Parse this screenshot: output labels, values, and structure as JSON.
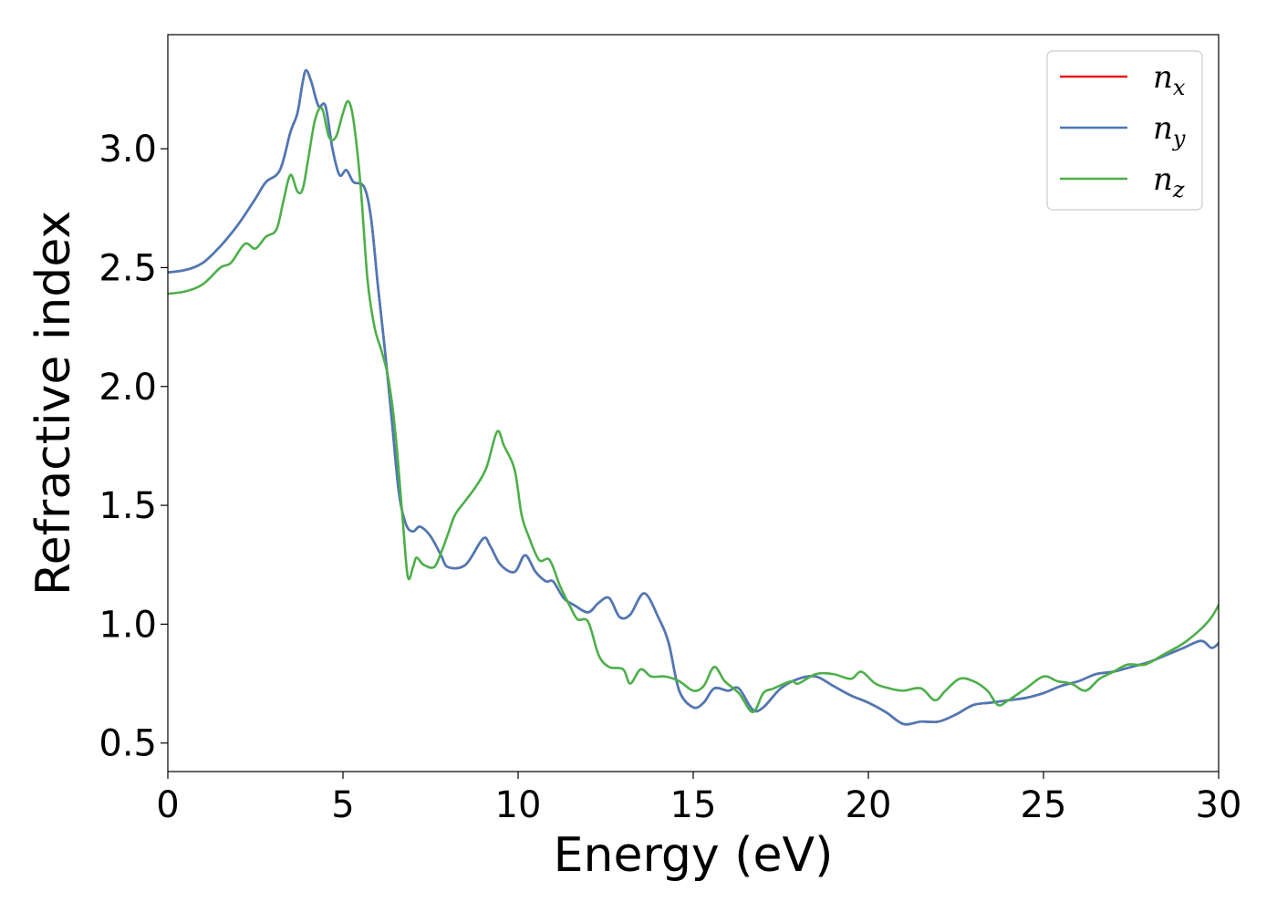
{
  "chart_data": {
    "type": "line",
    "xlabel": "Energy (eV)",
    "ylabel": "Refractive index",
    "xlim": [
      0,
      30
    ],
    "ylim": [
      0.38,
      3.48
    ],
    "xticks": [
      0,
      5,
      10,
      15,
      20,
      25,
      30
    ],
    "xtick_labels": [
      "0",
      "5",
      "10",
      "15",
      "20",
      "25",
      "30"
    ],
    "yticks": [
      0.5,
      1.0,
      1.5,
      2.0,
      2.5,
      3.0
    ],
    "ytick_labels": [
      "0.5",
      "1.0",
      "1.5",
      "2.0",
      "2.5",
      "3.0"
    ],
    "grid": false,
    "legend_position": "top-right",
    "series": [
      {
        "name": "n_x",
        "label_base": "n",
        "label_sub": "x",
        "color": "#e41a1c",
        "points": [
          [
            0,
            2.48
          ],
          [
            0.5,
            2.49
          ],
          [
            1.0,
            2.52
          ],
          [
            1.5,
            2.59
          ],
          [
            2.0,
            2.68
          ],
          [
            2.5,
            2.79
          ],
          [
            2.8,
            2.86
          ],
          [
            3.2,
            2.91
          ],
          [
            3.5,
            3.07
          ],
          [
            3.7,
            3.15
          ],
          [
            3.85,
            3.28
          ],
          [
            3.95,
            3.33
          ],
          [
            4.1,
            3.28
          ],
          [
            4.3,
            3.18
          ],
          [
            4.5,
            3.18
          ],
          [
            4.7,
            3.0
          ],
          [
            4.9,
            2.89
          ],
          [
            5.1,
            2.91
          ],
          [
            5.3,
            2.86
          ],
          [
            5.6,
            2.84
          ],
          [
            5.8,
            2.71
          ],
          [
            6.0,
            2.42
          ],
          [
            6.2,
            2.15
          ],
          [
            6.4,
            1.85
          ],
          [
            6.6,
            1.55
          ],
          [
            6.8,
            1.42
          ],
          [
            7.0,
            1.39
          ],
          [
            7.2,
            1.41
          ],
          [
            7.5,
            1.37
          ],
          [
            7.8,
            1.29
          ],
          [
            8.0,
            1.24
          ],
          [
            8.5,
            1.25
          ],
          [
            9.0,
            1.36
          ],
          [
            9.2,
            1.33
          ],
          [
            9.5,
            1.25
          ],
          [
            9.9,
            1.22
          ],
          [
            10.2,
            1.29
          ],
          [
            10.5,
            1.22
          ],
          [
            10.8,
            1.18
          ],
          [
            11.0,
            1.18
          ],
          [
            11.3,
            1.11
          ],
          [
            11.6,
            1.08
          ],
          [
            12.0,
            1.05
          ],
          [
            12.3,
            1.09
          ],
          [
            12.6,
            1.11
          ],
          [
            12.9,
            1.03
          ],
          [
            13.2,
            1.04
          ],
          [
            13.6,
            1.13
          ],
          [
            14.0,
            1.03
          ],
          [
            14.3,
            0.92
          ],
          [
            14.6,
            0.72
          ],
          [
            15.0,
            0.65
          ],
          [
            15.3,
            0.67
          ],
          [
            15.6,
            0.73
          ],
          [
            16.0,
            0.72
          ],
          [
            16.3,
            0.73
          ],
          [
            16.7,
            0.64
          ],
          [
            17.0,
            0.65
          ],
          [
            17.5,
            0.73
          ],
          [
            18.0,
            0.77
          ],
          [
            18.5,
            0.78
          ],
          [
            19.0,
            0.74
          ],
          [
            19.5,
            0.7
          ],
          [
            20.0,
            0.67
          ],
          [
            20.5,
            0.63
          ],
          [
            21.0,
            0.58
          ],
          [
            21.5,
            0.59
          ],
          [
            22.0,
            0.59
          ],
          [
            22.5,
            0.62
          ],
          [
            23.0,
            0.66
          ],
          [
            23.5,
            0.67
          ],
          [
            24.0,
            0.68
          ],
          [
            24.5,
            0.69
          ],
          [
            25.0,
            0.71
          ],
          [
            25.5,
            0.74
          ],
          [
            26.0,
            0.76
          ],
          [
            26.5,
            0.79
          ],
          [
            27.0,
            0.8
          ],
          [
            27.5,
            0.82
          ],
          [
            28.0,
            0.84
          ],
          [
            28.5,
            0.87
          ],
          [
            29.0,
            0.9
          ],
          [
            29.5,
            0.93
          ],
          [
            29.8,
            0.9
          ],
          [
            30.0,
            0.92
          ]
        ]
      },
      {
        "name": "n_y",
        "label_base": "n",
        "label_sub": "y",
        "color": "#4a7ab8",
        "points": [
          [
            0,
            2.48
          ],
          [
            0.5,
            2.49
          ],
          [
            1.0,
            2.52
          ],
          [
            1.5,
            2.59
          ],
          [
            2.0,
            2.68
          ],
          [
            2.5,
            2.79
          ],
          [
            2.8,
            2.86
          ],
          [
            3.2,
            2.91
          ],
          [
            3.5,
            3.07
          ],
          [
            3.7,
            3.15
          ],
          [
            3.85,
            3.28
          ],
          [
            3.95,
            3.33
          ],
          [
            4.1,
            3.28
          ],
          [
            4.3,
            3.18
          ],
          [
            4.5,
            3.18
          ],
          [
            4.7,
            3.0
          ],
          [
            4.9,
            2.89
          ],
          [
            5.1,
            2.91
          ],
          [
            5.3,
            2.86
          ],
          [
            5.6,
            2.84
          ],
          [
            5.8,
            2.71
          ],
          [
            6.0,
            2.42
          ],
          [
            6.2,
            2.15
          ],
          [
            6.4,
            1.85
          ],
          [
            6.6,
            1.55
          ],
          [
            6.8,
            1.42
          ],
          [
            7.0,
            1.39
          ],
          [
            7.2,
            1.41
          ],
          [
            7.5,
            1.37
          ],
          [
            7.8,
            1.29
          ],
          [
            8.0,
            1.24
          ],
          [
            8.5,
            1.25
          ],
          [
            9.0,
            1.36
          ],
          [
            9.2,
            1.33
          ],
          [
            9.5,
            1.25
          ],
          [
            9.9,
            1.22
          ],
          [
            10.2,
            1.29
          ],
          [
            10.5,
            1.22
          ],
          [
            10.8,
            1.18
          ],
          [
            11.0,
            1.18
          ],
          [
            11.3,
            1.11
          ],
          [
            11.6,
            1.08
          ],
          [
            12.0,
            1.05
          ],
          [
            12.3,
            1.09
          ],
          [
            12.6,
            1.11
          ],
          [
            12.9,
            1.03
          ],
          [
            13.2,
            1.04
          ],
          [
            13.6,
            1.13
          ],
          [
            14.0,
            1.03
          ],
          [
            14.3,
            0.92
          ],
          [
            14.6,
            0.72
          ],
          [
            15.0,
            0.65
          ],
          [
            15.3,
            0.67
          ],
          [
            15.6,
            0.73
          ],
          [
            16.0,
            0.72
          ],
          [
            16.3,
            0.73
          ],
          [
            16.7,
            0.64
          ],
          [
            17.0,
            0.65
          ],
          [
            17.5,
            0.73
          ],
          [
            18.0,
            0.77
          ],
          [
            18.5,
            0.78
          ],
          [
            19.0,
            0.74
          ],
          [
            19.5,
            0.7
          ],
          [
            20.0,
            0.67
          ],
          [
            20.5,
            0.63
          ],
          [
            21.0,
            0.58
          ],
          [
            21.5,
            0.59
          ],
          [
            22.0,
            0.59
          ],
          [
            22.5,
            0.62
          ],
          [
            23.0,
            0.66
          ],
          [
            23.5,
            0.67
          ],
          [
            24.0,
            0.68
          ],
          [
            24.5,
            0.69
          ],
          [
            25.0,
            0.71
          ],
          [
            25.5,
            0.74
          ],
          [
            26.0,
            0.76
          ],
          [
            26.5,
            0.79
          ],
          [
            27.0,
            0.8
          ],
          [
            27.5,
            0.82
          ],
          [
            28.0,
            0.84
          ],
          [
            28.5,
            0.87
          ],
          [
            29.0,
            0.9
          ],
          [
            29.5,
            0.93
          ],
          [
            29.8,
            0.9
          ],
          [
            30.0,
            0.92
          ]
        ]
      },
      {
        "name": "n_z",
        "label_base": "n",
        "label_sub": "z",
        "color": "#4daf4a",
        "points": [
          [
            0,
            2.39
          ],
          [
            0.5,
            2.4
          ],
          [
            1.0,
            2.43
          ],
          [
            1.5,
            2.5
          ],
          [
            1.8,
            2.52
          ],
          [
            2.2,
            2.6
          ],
          [
            2.5,
            2.58
          ],
          [
            2.8,
            2.63
          ],
          [
            3.1,
            2.66
          ],
          [
            3.3,
            2.78
          ],
          [
            3.5,
            2.89
          ],
          [
            3.7,
            2.82
          ],
          [
            3.85,
            2.83
          ],
          [
            4.0,
            2.95
          ],
          [
            4.2,
            3.12
          ],
          [
            4.4,
            3.17
          ],
          [
            4.6,
            3.05
          ],
          [
            4.8,
            3.05
          ],
          [
            5.0,
            3.15
          ],
          [
            5.15,
            3.2
          ],
          [
            5.3,
            3.12
          ],
          [
            5.5,
            2.85
          ],
          [
            5.7,
            2.45
          ],
          [
            5.9,
            2.25
          ],
          [
            6.1,
            2.15
          ],
          [
            6.3,
            2.03
          ],
          [
            6.5,
            1.8
          ],
          [
            6.7,
            1.45
          ],
          [
            6.85,
            1.2
          ],
          [
            7.0,
            1.24
          ],
          [
            7.1,
            1.28
          ],
          [
            7.3,
            1.25
          ],
          [
            7.6,
            1.24
          ],
          [
            7.8,
            1.3
          ],
          [
            8.0,
            1.38
          ],
          [
            8.2,
            1.46
          ],
          [
            8.5,
            1.52
          ],
          [
            8.8,
            1.58
          ],
          [
            9.1,
            1.66
          ],
          [
            9.4,
            1.81
          ],
          [
            9.6,
            1.75
          ],
          [
            9.9,
            1.65
          ],
          [
            10.1,
            1.46
          ],
          [
            10.3,
            1.37
          ],
          [
            10.6,
            1.27
          ],
          [
            10.9,
            1.27
          ],
          [
            11.2,
            1.16
          ],
          [
            11.5,
            1.07
          ],
          [
            11.7,
            1.02
          ],
          [
            12.0,
            1.01
          ],
          [
            12.3,
            0.87
          ],
          [
            12.6,
            0.82
          ],
          [
            13.0,
            0.81
          ],
          [
            13.2,
            0.75
          ],
          [
            13.5,
            0.81
          ],
          [
            13.8,
            0.78
          ],
          [
            14.2,
            0.78
          ],
          [
            14.6,
            0.76
          ],
          [
            15.0,
            0.72
          ],
          [
            15.3,
            0.74
          ],
          [
            15.6,
            0.82
          ],
          [
            15.9,
            0.76
          ],
          [
            16.3,
            0.71
          ],
          [
            16.7,
            0.63
          ],
          [
            17.0,
            0.71
          ],
          [
            17.3,
            0.73
          ],
          [
            17.8,
            0.76
          ],
          [
            18.0,
            0.75
          ],
          [
            18.5,
            0.79
          ],
          [
            19.0,
            0.79
          ],
          [
            19.5,
            0.77
          ],
          [
            19.8,
            0.8
          ],
          [
            20.2,
            0.75
          ],
          [
            20.6,
            0.73
          ],
          [
            21.0,
            0.72
          ],
          [
            21.5,
            0.73
          ],
          [
            21.9,
            0.68
          ],
          [
            22.2,
            0.72
          ],
          [
            22.6,
            0.77
          ],
          [
            23.0,
            0.76
          ],
          [
            23.4,
            0.72
          ],
          [
            23.7,
            0.66
          ],
          [
            24.0,
            0.68
          ],
          [
            24.5,
            0.73
          ],
          [
            25.0,
            0.78
          ],
          [
            25.4,
            0.76
          ],
          [
            25.8,
            0.75
          ],
          [
            26.2,
            0.72
          ],
          [
            26.6,
            0.77
          ],
          [
            27.0,
            0.8
          ],
          [
            27.4,
            0.83
          ],
          [
            27.9,
            0.83
          ],
          [
            28.4,
            0.87
          ],
          [
            29.0,
            0.92
          ],
          [
            29.5,
            0.98
          ],
          [
            29.8,
            1.03
          ],
          [
            30.0,
            1.08
          ]
        ]
      }
    ]
  }
}
